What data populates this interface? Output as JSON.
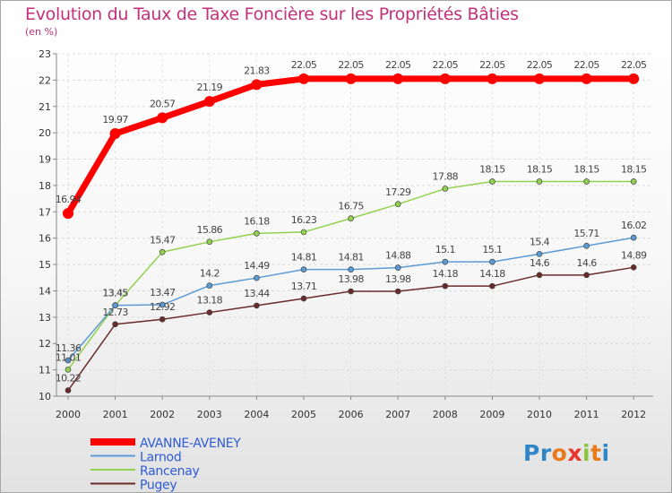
{
  "title": "Evolution du Taux de Taxe Foncière sur les Propriétés Bâties",
  "unit_label": "(en %)",
  "logo": {
    "letters": [
      "P",
      "r",
      "o",
      "x",
      "i",
      "t",
      "i"
    ],
    "colors": [
      "#2f85c6",
      "#2f85c6",
      "#e87a1c",
      "#e8352c",
      "#8cc63f",
      "#e87a1c",
      "#2f85c6"
    ]
  },
  "chart_data": {
    "type": "line",
    "title": "Evolution du Taux de Taxe Foncière sur les Propriétés Bâties",
    "ylabel": "(en %)",
    "xlabel": "",
    "x": [
      "2000",
      "2001",
      "2002",
      "2003",
      "2004",
      "2005",
      "2006",
      "2007",
      "2008",
      "2009",
      "2010",
      "2011",
      "2012"
    ],
    "ylim": [
      10,
      23
    ],
    "yticks": [
      "10",
      "11",
      "12",
      "13",
      "14",
      "15",
      "16",
      "17",
      "18",
      "19",
      "20",
      "21",
      "22",
      "23"
    ],
    "grid": true,
    "legend_position": "bottom-left",
    "series": [
      {
        "name": "AVANNE-AVENEY",
        "color": "#ff0000",
        "values": [
          16.94,
          19.97,
          20.57,
          21.19,
          21.83,
          22.05,
          22.05,
          22.05,
          22.05,
          22.05,
          22.05,
          22.05,
          22.05
        ],
        "labels": [
          "16.94",
          "19.97",
          "20.57",
          "21.19",
          "21.83",
          "22.05",
          "22.05",
          "22.05",
          "22.05",
          "22.05",
          "22.05",
          "22.05",
          "22.05"
        ]
      },
      {
        "name": "Larnod",
        "color": "#5b9bd5",
        "values": [
          11.36,
          13.45,
          13.47,
          14.2,
          14.49,
          14.81,
          14.81,
          14.88,
          15.1,
          15.1,
          15.4,
          15.71,
          16.02
        ],
        "labels": [
          "11.36",
          "13.45",
          "13.47",
          "14.2",
          "14.49",
          "14.81",
          "14.81",
          "14.88",
          "15.1",
          "15.1",
          "15.4",
          "15.71",
          "16.02"
        ]
      },
      {
        "name": "Rancenay",
        "color": "#92d050",
        "values": [
          11.01,
          13.45,
          15.47,
          15.86,
          16.18,
          16.23,
          16.75,
          17.29,
          17.88,
          18.15,
          18.15,
          18.15,
          18.15
        ],
        "labels": [
          "11.01",
          "13.45",
          "15.47",
          "15.86",
          "16.18",
          "16.23",
          "16.75",
          "17.29",
          "17.88",
          "18.15",
          "18.15",
          "18.15",
          "18.15"
        ]
      },
      {
        "name": "Pugey",
        "color": "#6b2a2a",
        "values": [
          10.22,
          12.73,
          12.92,
          13.18,
          13.44,
          13.71,
          13.98,
          13.98,
          14.18,
          14.18,
          14.6,
          14.6,
          14.89
        ],
        "labels": [
          "10.22",
          "12.73",
          "12.92",
          "13.18",
          "13.44",
          "13.71",
          "13.98",
          "13.98",
          "14.18",
          "14.18",
          "14.6",
          "14.6",
          "14.89"
        ]
      }
    ]
  }
}
